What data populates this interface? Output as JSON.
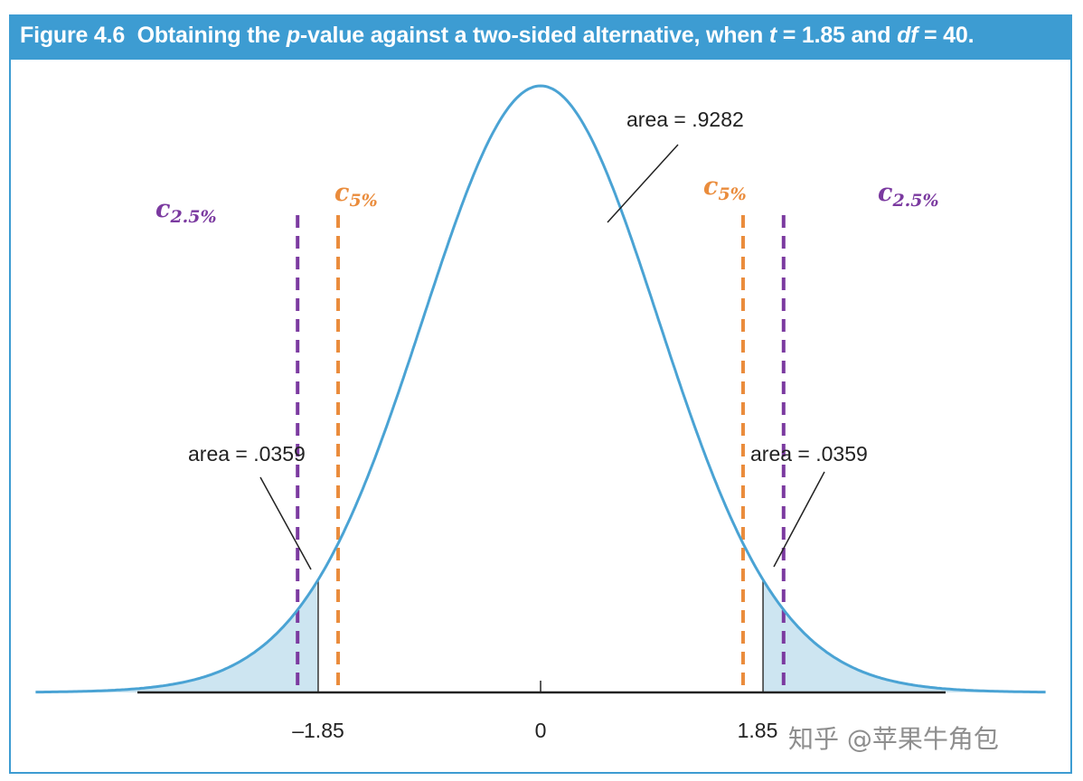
{
  "title": {
    "figure_no": "Figure 4.6",
    "text_a": "Obtaining the ",
    "p_sym": "p",
    "text_b": "-value against a two-sided alternative, when ",
    "t_sym": "t",
    "text_c": " = 1.85 and ",
    "df_sym": "df",
    "text_d": " = 40."
  },
  "labels": {
    "area_center": "area = .9282",
    "area_left": "area = .0359",
    "area_right": "area = .0359",
    "c_letter": "c",
    "sub_2_5": "2.5%",
    "sub_5": "5%"
  },
  "ticks": {
    "neg": "–1.85",
    "zero": "0",
    "pos": "1.85"
  },
  "watermark": "知乎 @苹果牛角包",
  "colors": {
    "title_bg": "#3d9cd2",
    "curve": "#4aa3d4",
    "shade": "#cde5f1",
    "c25": "#7b3aa0",
    "c5": "#ea8c3c"
  },
  "chart_data": {
    "type": "area",
    "distribution": "t",
    "df": 40,
    "t_value": 1.85,
    "shaded_tails": [
      [
        -4.2,
        -1.85
      ],
      [
        1.85,
        4.2
      ]
    ],
    "areas": {
      "left_tail": 0.0359,
      "center": 0.9282,
      "right_tail": 0.0359
    },
    "critical_values": [
      {
        "name": "c2.5%",
        "x": [
          -2.021,
          2.021
        ]
      },
      {
        "name": "c5%",
        "x": [
          -1.684,
          1.684
        ]
      }
    ],
    "xticks": [
      -1.85,
      0,
      1.85
    ],
    "xlim": [
      -4.2,
      4.2
    ]
  }
}
